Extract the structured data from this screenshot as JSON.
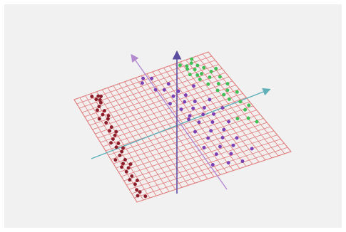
{
  "chart_data": {
    "type": "scatter",
    "projection": "3d",
    "title": "",
    "xlabel": "",
    "ylabel": "",
    "zlabel": "",
    "legend": "none",
    "grid": "plane-mesh",
    "colors": {
      "background": "#f1f1f1",
      "plane_grid": "#e07a7a",
      "axis_vertical": "#5b4ea0",
      "axis_cyan": "#5fb0b8",
      "axis_violet": "#b38ad0"
    },
    "series": [
      {
        "color": "#8c1d2a",
        "points": [
          [
            -0.95,
            -0.9
          ],
          [
            -0.92,
            -0.8
          ],
          [
            -0.9,
            -0.7
          ],
          [
            -0.93,
            -0.6
          ],
          [
            -0.88,
            -0.55
          ],
          [
            -0.91,
            -0.45
          ],
          [
            -0.86,
            -0.4
          ],
          [
            -0.89,
            -0.3
          ],
          [
            -0.84,
            -0.25
          ],
          [
            -0.87,
            -0.15
          ],
          [
            -0.82,
            -0.1
          ],
          [
            -0.85,
            0.0
          ],
          [
            -0.8,
            0.05
          ],
          [
            -0.83,
            0.15
          ],
          [
            -0.78,
            0.2
          ],
          [
            -0.81,
            0.3
          ],
          [
            -0.76,
            0.35
          ],
          [
            -0.79,
            0.45
          ],
          [
            -0.74,
            0.5
          ],
          [
            -0.77,
            0.6
          ],
          [
            -0.72,
            0.65
          ],
          [
            -0.75,
            0.75
          ],
          [
            -0.7,
            0.8
          ],
          [
            -0.73,
            0.88
          ],
          [
            -0.68,
            0.92
          ],
          [
            -0.9,
            -0.85
          ],
          [
            -0.85,
            -0.65
          ],
          [
            -0.81,
            -0.35
          ],
          [
            -0.78,
            -0.05
          ],
          [
            -0.74,
            0.25
          ],
          [
            -0.71,
            0.55
          ],
          [
            -0.69,
            0.85
          ],
          [
            -0.93,
            -0.35
          ],
          [
            -0.88,
            0.1
          ],
          [
            -0.84,
            0.55
          ],
          [
            -0.8,
            0.7
          ],
          [
            -0.76,
            0.95
          ],
          [
            -0.65,
            0.9
          ],
          [
            -0.87,
            -0.95
          ],
          [
            -0.95,
            -0.2
          ]
        ]
      },
      {
        "color": "#7a3fb5",
        "points": [
          [
            0.05,
            0.7
          ],
          [
            0.15,
            0.65
          ],
          [
            0.25,
            0.72
          ],
          [
            0.3,
            0.55
          ],
          [
            0.2,
            0.5
          ],
          [
            0.35,
            0.45
          ],
          [
            0.1,
            0.4
          ],
          [
            0.28,
            0.35
          ],
          [
            0.4,
            0.3
          ],
          [
            0.18,
            0.25
          ],
          [
            0.32,
            0.2
          ],
          [
            0.45,
            0.15
          ],
          [
            0.22,
            0.1
          ],
          [
            0.38,
            0.05
          ],
          [
            0.5,
            0.0
          ],
          [
            0.27,
            -0.05
          ],
          [
            0.42,
            -0.12
          ],
          [
            0.15,
            -0.18
          ],
          [
            0.33,
            -0.25
          ],
          [
            0.48,
            -0.3
          ],
          [
            0.24,
            -0.35
          ],
          [
            0.4,
            -0.42
          ],
          [
            0.12,
            -0.48
          ],
          [
            0.3,
            -0.55
          ],
          [
            0.45,
            -0.6
          ],
          [
            0.2,
            -0.65
          ],
          [
            0.36,
            -0.72
          ],
          [
            0.55,
            -0.5
          ],
          [
            0.6,
            -0.2
          ],
          [
            0.58,
            0.25
          ],
          [
            0.08,
            -0.8
          ],
          [
            0.26,
            -0.85
          ],
          [
            0.0,
            0.95
          ],
          [
            -0.05,
            0.88
          ],
          [
            0.1,
            0.9
          ],
          [
            0.52,
            0.55
          ],
          [
            0.65,
            0.05
          ],
          [
            0.62,
            -0.75
          ],
          [
            0.42,
            -0.9
          ],
          [
            0.18,
            0.05
          ]
        ]
      },
      {
        "color": "#3fbf54",
        "points": [
          [
            0.55,
            0.95
          ],
          [
            0.62,
            0.9
          ],
          [
            0.7,
            0.92
          ],
          [
            0.75,
            0.85
          ],
          [
            0.68,
            0.8
          ],
          [
            0.8,
            0.78
          ],
          [
            0.58,
            0.75
          ],
          [
            0.72,
            0.7
          ],
          [
            0.85,
            0.68
          ],
          [
            0.65,
            0.62
          ],
          [
            0.78,
            0.6
          ],
          [
            0.9,
            0.55
          ],
          [
            0.7,
            0.5
          ],
          [
            0.82,
            0.45
          ],
          [
            0.92,
            0.4
          ],
          [
            0.75,
            0.35
          ],
          [
            0.86,
            0.3
          ],
          [
            0.95,
            0.22
          ],
          [
            0.8,
            0.15
          ],
          [
            0.9,
            0.05
          ],
          [
            0.88,
            -0.1
          ],
          [
            0.84,
            -0.25
          ],
          [
            0.96,
            -0.05
          ],
          [
            0.6,
            0.85
          ],
          [
            0.74,
            0.98
          ],
          [
            0.66,
            0.7
          ],
          [
            0.93,
            0.7
          ],
          [
            0.78,
            0.25
          ],
          [
            0.72,
            -0.2
          ],
          [
            0.9,
            -0.35
          ]
        ]
      }
    ]
  }
}
